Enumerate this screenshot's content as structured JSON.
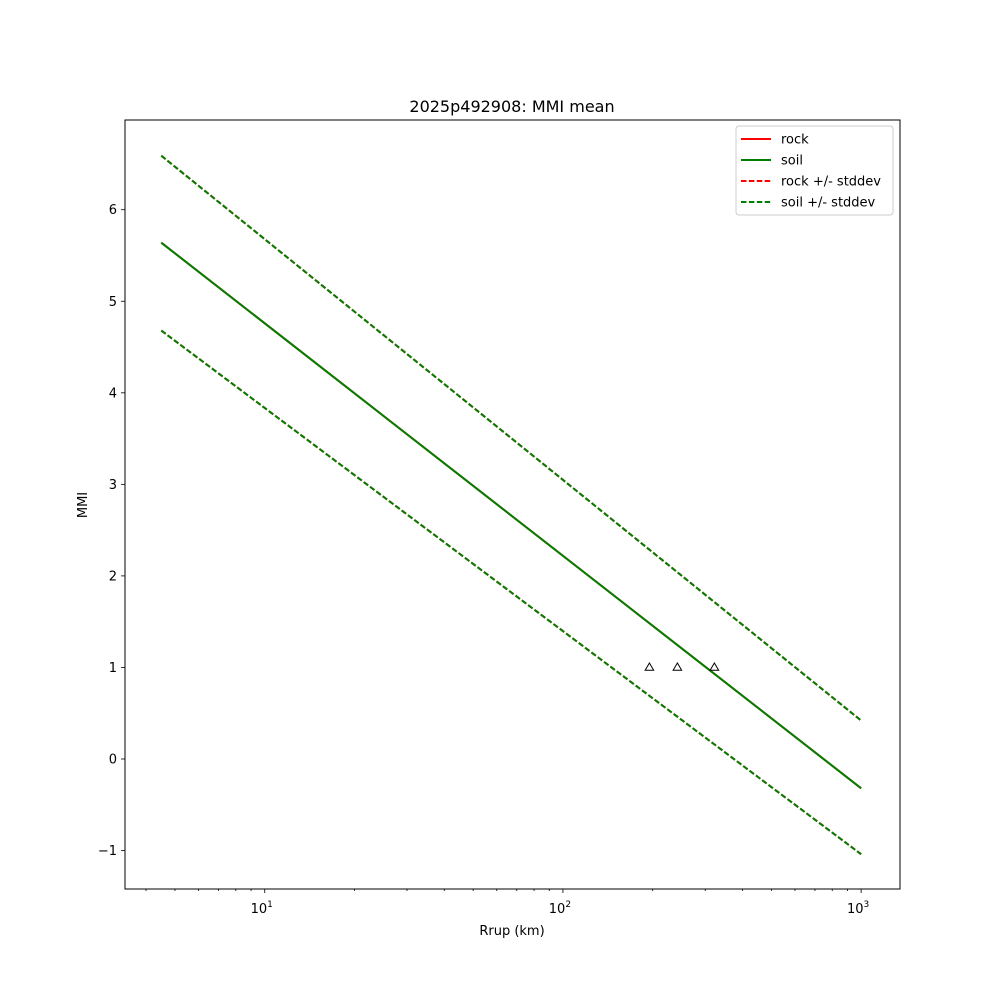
{
  "chart_data": {
    "type": "line",
    "title": "2025p492908: MMI mean",
    "xlabel": "Rrup (km)",
    "ylabel": "MMI",
    "xscale": "log",
    "xlim": [
      3.4,
      1350
    ],
    "ylim": [
      -1.42,
      6.98
    ],
    "grid": false,
    "legend_position": "top-right",
    "x_ticks": [
      {
        "value": 10,
        "base": "10",
        "exp": "1"
      },
      {
        "value": 100,
        "base": "10",
        "exp": "2"
      },
      {
        "value": 1000,
        "base": "10",
        "exp": "3"
      }
    ],
    "y_ticks": [
      {
        "value": -1,
        "label": "−1"
      },
      {
        "value": 0,
        "label": "0"
      },
      {
        "value": 1,
        "label": "1"
      },
      {
        "value": 2,
        "label": "2"
      },
      {
        "value": 3,
        "label": "3"
      },
      {
        "value": 4,
        "label": "4"
      },
      {
        "value": 5,
        "label": "5"
      },
      {
        "value": 6,
        "label": "6"
      }
    ],
    "series": [
      {
        "name": "rock",
        "color": "#ff0000",
        "style": "solid",
        "x": [
          4.5,
          1000
        ],
        "y": [
          5.64,
          -0.32
        ]
      },
      {
        "name": "soil",
        "color": "#008000",
        "style": "solid",
        "x": [
          4.5,
          1000
        ],
        "y": [
          5.64,
          -0.32
        ]
      },
      {
        "name": "rock +/- stddev",
        "color": "#ff0000",
        "style": "dashed",
        "x": [
          4.5,
          1000
        ],
        "y": [
          6.59,
          0.42
        ],
        "y_lower": [
          4.68,
          -1.04
        ]
      },
      {
        "name": "soil +/- stddev",
        "color": "#008000",
        "style": "dashed",
        "x": [
          4.5,
          1000
        ],
        "y": [
          6.59,
          0.42
        ],
        "y_lower": [
          4.68,
          -1.04
        ]
      }
    ],
    "points": {
      "marker": "triangle-open",
      "x": [
        195,
        242,
        322
      ],
      "y": [
        1,
        1,
        1
      ]
    }
  }
}
